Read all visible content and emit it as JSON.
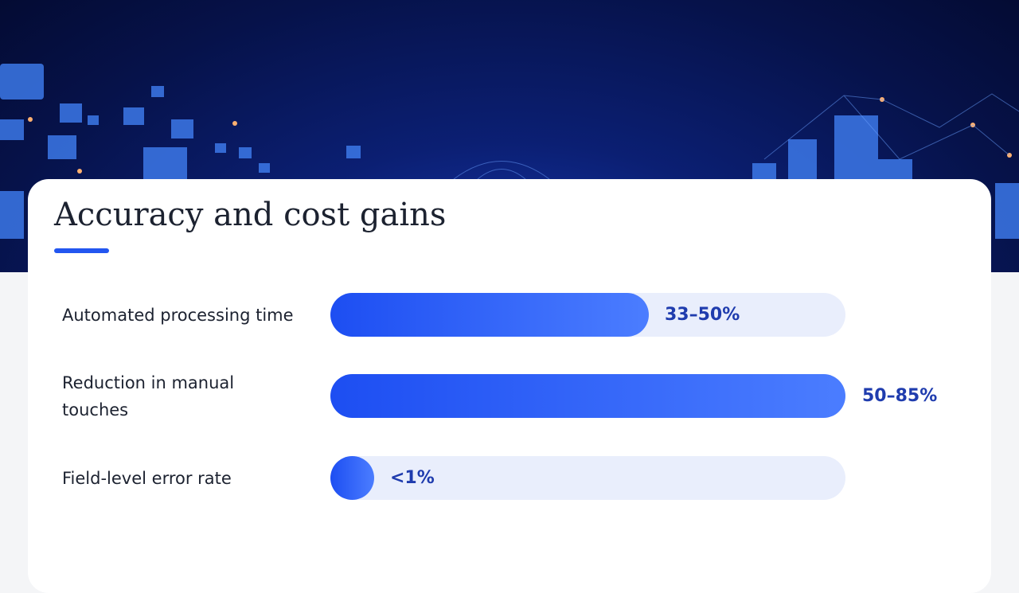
{
  "title": "Accuracy and cost gains",
  "rows": [
    {
      "label": "Automated processing time",
      "value": "33–50%"
    },
    {
      "label": "Reduction in manual touches",
      "value": "50–85%"
    },
    {
      "label": "Field-level error rate",
      "value": "<1%"
    }
  ]
}
